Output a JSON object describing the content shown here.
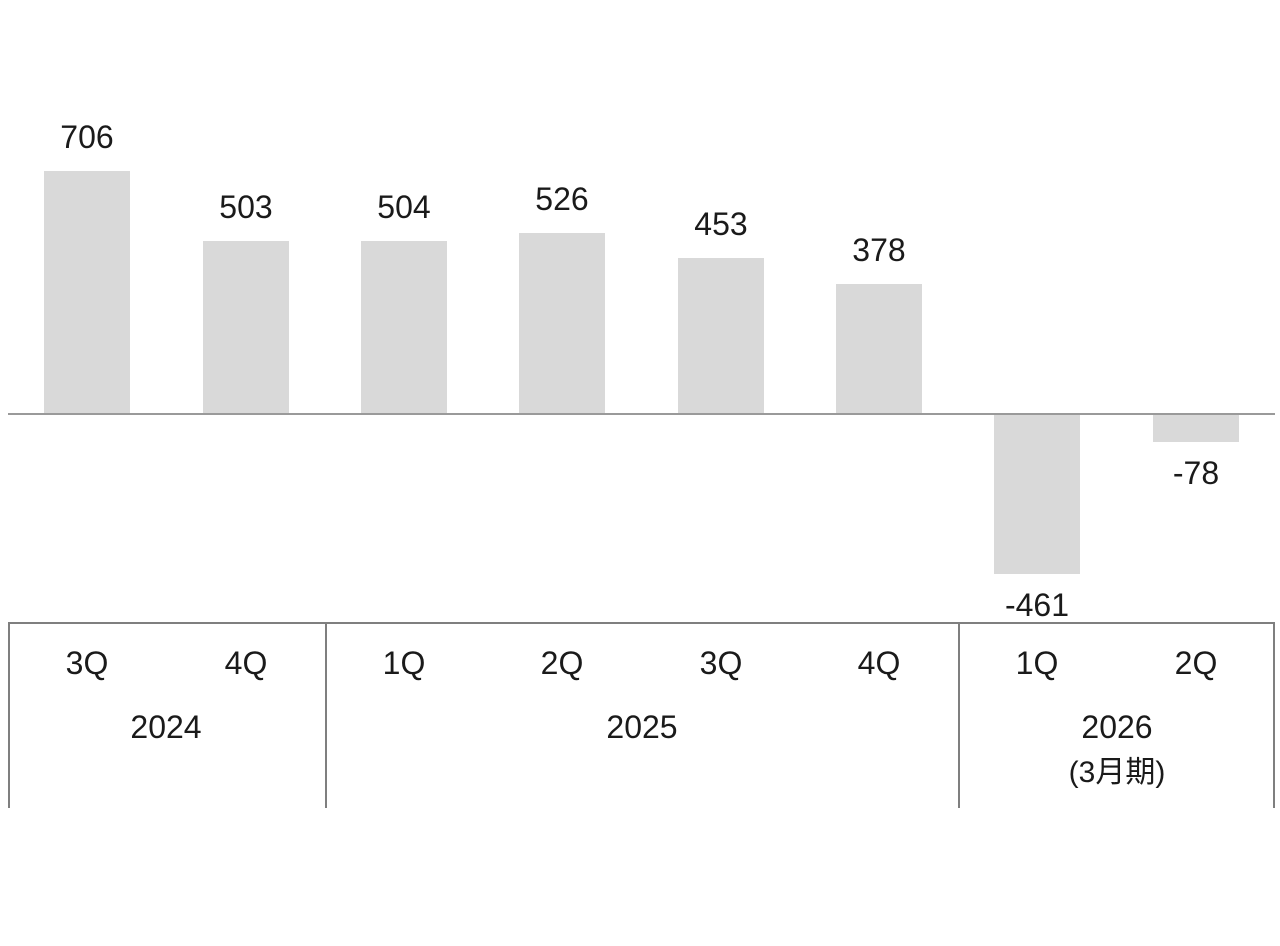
{
  "chart_data": {
    "type": "bar",
    "categories": [
      "3Q",
      "4Q",
      "1Q",
      "2Q",
      "3Q",
      "4Q",
      "1Q",
      "2Q"
    ],
    "values": [
      706,
      503,
      504,
      526,
      453,
      378,
      -461,
      -78
    ],
    "data_labels": [
      "706",
      "503",
      "504",
      "526",
      "453",
      "378",
      "-461",
      "-78"
    ],
    "groups": [
      {
        "label": "2024",
        "sublabel": "",
        "span": 2
      },
      {
        "label": "2025",
        "sublabel": "",
        "span": 4
      },
      {
        "label": "2026",
        "sublabel": "(3月期)",
        "span": 2
      }
    ],
    "title": "",
    "xlabel": "",
    "ylabel": "",
    "ylim": [
      -560,
      780
    ],
    "grid": false,
    "legend": false,
    "bar_color": "#d9d9d9",
    "axis_line_color": "#9a9a9a",
    "table_line_color": "#7f7f7f",
    "text_color": "#1a1a1a"
  }
}
